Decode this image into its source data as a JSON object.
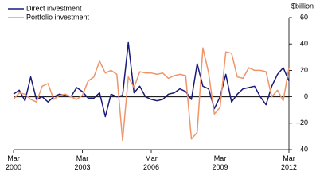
{
  "chart_data": {
    "type": "line",
    "y_axis_label": "$billion",
    "categories": [
      "Mar 2000",
      null,
      null,
      null,
      null,
      null,
      null,
      null,
      null,
      null,
      null,
      null,
      "Mar 2003",
      null,
      null,
      null,
      null,
      null,
      null,
      null,
      null,
      null,
      null,
      null,
      "Mar 2006",
      null,
      null,
      null,
      null,
      null,
      null,
      null,
      null,
      null,
      null,
      null,
      "Mar 2009",
      null,
      null,
      null,
      null,
      null,
      null,
      null,
      null,
      null,
      null,
      null,
      "Mar 2012"
    ],
    "series": [
      {
        "name": "Direct investment",
        "color": "#1a1a7a",
        "values": [
          2,
          5,
          -3,
          15,
          -2,
          0,
          -4,
          0,
          2,
          1,
          0,
          7,
          4,
          -1,
          -1,
          3,
          -15,
          2,
          0,
          1,
          41,
          3,
          8,
          0,
          -2,
          -3,
          -2,
          2,
          3,
          6,
          4,
          -2,
          25,
          8,
          6,
          -9,
          0,
          17,
          -4,
          2,
          6,
          7,
          8,
          0,
          -6,
          8,
          17,
          22,
          12
        ]
      },
      {
        "name": "Portfolio investment",
        "color": "#f0956a",
        "values": [
          -2,
          3,
          2,
          -2,
          -4,
          8,
          10,
          -2,
          1,
          2,
          0,
          -2,
          1,
          12,
          15,
          27,
          18,
          20,
          17,
          -33,
          15,
          7,
          19,
          18,
          18,
          17,
          18,
          14,
          16,
          17,
          16,
          -32,
          -27,
          37,
          18,
          -13,
          -8,
          34,
          33,
          15,
          14,
          22,
          20,
          20,
          19,
          0,
          5,
          -3,
          22
        ]
      }
    ],
    "ylim": [
      -40,
      60
    ],
    "yticks": [
      {
        "value": -40,
        "label": "–40"
      },
      {
        "value": -20,
        "label": "–20"
      },
      0,
      20,
      40,
      60
    ],
    "legend": "top-left"
  }
}
